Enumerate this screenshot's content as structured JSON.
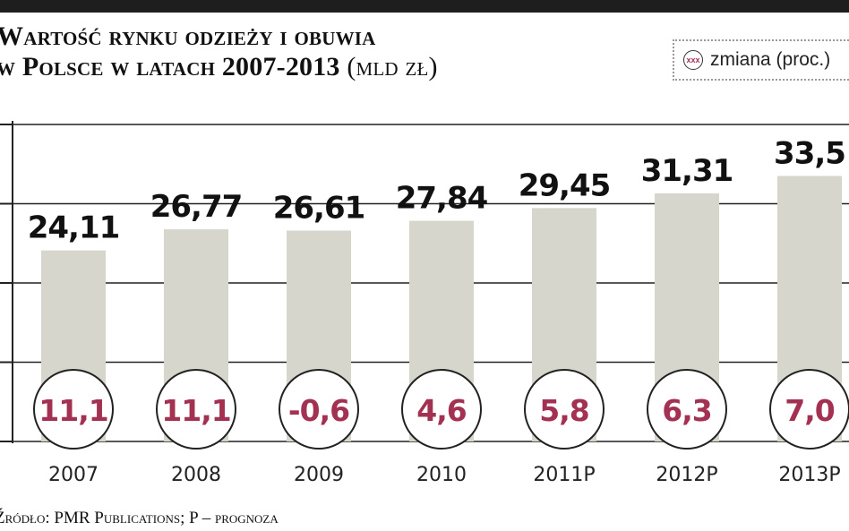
{
  "title": {
    "line1": "Wartość rynku odzieży i obuwia",
    "line2": "w Polsce w latach 2007-2013",
    "unit": "(mld zł)"
  },
  "legend": {
    "marker": "xxx",
    "label": "zmiana (proc.)"
  },
  "source": "Źródło: PMR Publications; P – prognoza",
  "colors": {
    "bar": "#d6d6cc",
    "change_text": "#a33252",
    "grid": "#222222",
    "value_text": "#111111"
  },
  "chart_data": {
    "type": "bar",
    "title": "Wartość rynku odzieży i obuwia w Polsce w latach 2007-2013 (mld zł)",
    "categories": [
      "2007",
      "2008",
      "2009",
      "2010",
      "2011P",
      "2012P",
      "2013P"
    ],
    "values": [
      24.11,
      26.77,
      26.61,
      27.84,
      29.45,
      31.31,
      33.5
    ],
    "value_labels": [
      "24,11",
      "26,77",
      "26,61",
      "27,84",
      "29,45",
      "31,31",
      "33,5"
    ],
    "change_percent": [
      11.1,
      11.1,
      -0.6,
      4.6,
      5.8,
      6.3,
      7.0
    ],
    "change_labels": [
      "11,1",
      "11,1",
      "-0,6",
      "4,6",
      "5,8",
      "6,3",
      "7,0"
    ],
    "ylim": [
      0,
      40
    ],
    "grid": true
  }
}
